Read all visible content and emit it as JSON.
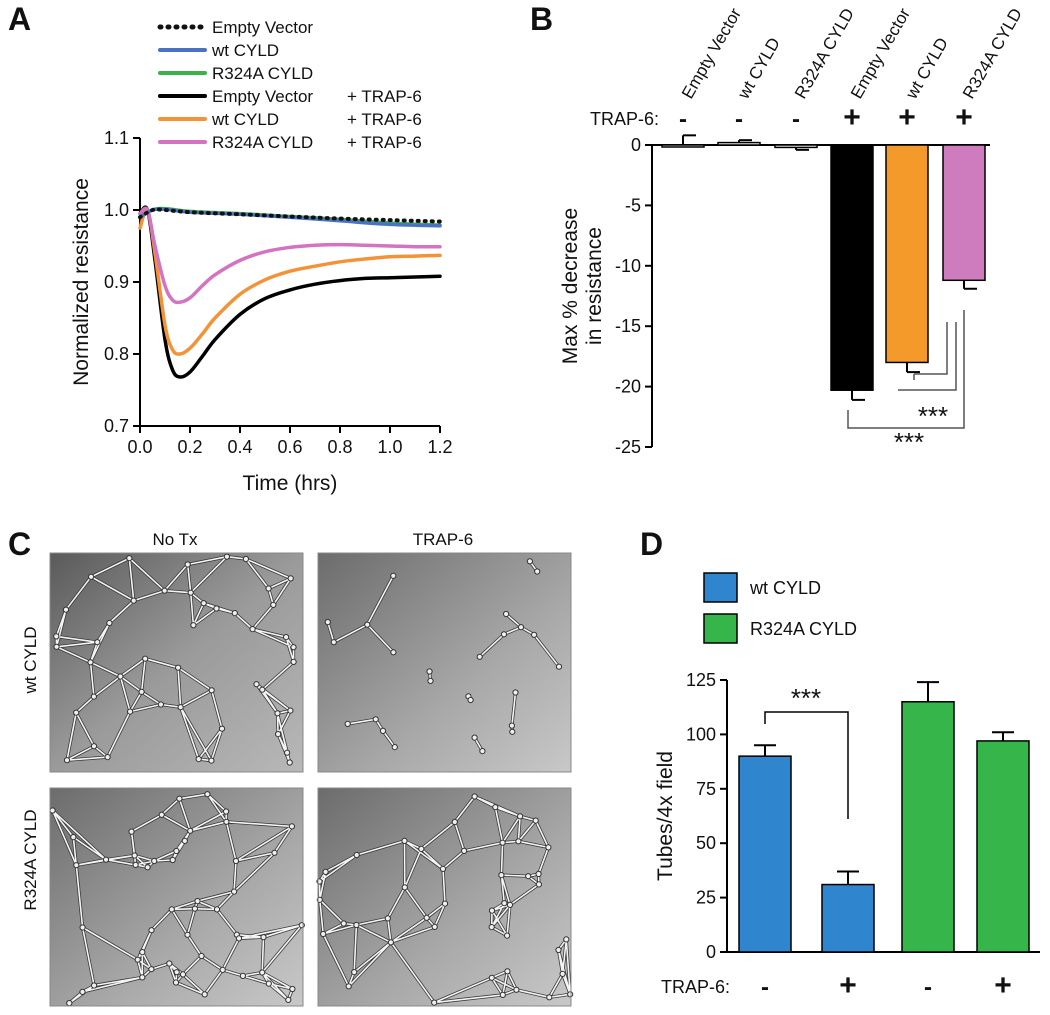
{
  "panels": {
    "A": {
      "label": "A"
    },
    "B": {
      "label": "B"
    },
    "C": {
      "label": "C",
      "col_headers": [
        "No Tx",
        "TRAP-6"
      ],
      "row_headers": [
        "wt CYLD",
        "R324A CYLD"
      ]
    },
    "D": {
      "label": "D"
    }
  },
  "colors": {
    "empty_vector": "#111111",
    "wt_cyld": "#4a72c4",
    "r324a_cyld": "#3db14a",
    "empty_vector_trap": "#000000",
    "wt_cyld_trap": "#f39237",
    "r324a_cyld_trap": "#d373c1",
    "bar_black": "#000000",
    "bar_orange": "#f39a2b",
    "bar_pink": "#ce7cbe",
    "bar_blue": "#2f86cf",
    "bar_green": "#36b54a"
  },
  "chart_data": [
    {
      "id": "A",
      "type": "line",
      "xlabel": "Time (hrs)",
      "ylabel": "Normalized resistance",
      "xlim": [
        0.0,
        1.2
      ],
      "ylim": [
        0.7,
        1.1
      ],
      "xticks": [
        "0.0",
        "0.2",
        "0.4",
        "0.6",
        "0.8",
        "1.0",
        "1.2"
      ],
      "yticks": [
        "0.7",
        "0.8",
        "0.9",
        "1.0",
        "1.1"
      ],
      "legend": {
        "position": "top",
        "entries": [
          {
            "text": "Empty Vector",
            "suffix": ""
          },
          {
            "text": "wt CYLD",
            "suffix": ""
          },
          {
            "text": "R324A CYLD",
            "suffix": ""
          },
          {
            "text": "Empty Vector",
            "suffix": "+ TRAP-6"
          },
          {
            "text": "wt CYLD",
            "suffix": "+ TRAP-6"
          },
          {
            "text": "R324A CYLD",
            "suffix": "+ TRAP-6"
          }
        ]
      },
      "series": [
        {
          "name": "Empty Vector",
          "style": "dotted",
          "color_key": "empty_vector",
          "x": [
            0,
            0.05,
            0.1,
            0.2,
            0.4,
            0.6,
            0.8,
            1.0,
            1.2
          ],
          "y": [
            0.99,
            1.0,
            1.0,
            0.997,
            0.994,
            0.991,
            0.988,
            0.986,
            0.984
          ]
        },
        {
          "name": "wt CYLD",
          "style": "solid",
          "color_key": "wt_cyld",
          "x": [
            0,
            0.05,
            0.1,
            0.2,
            0.4,
            0.6,
            0.8,
            1.0,
            1.2
          ],
          "y": [
            0.99,
            1.0,
            1.001,
            0.997,
            0.994,
            0.99,
            0.985,
            0.98,
            0.978
          ]
        },
        {
          "name": "R324A CYLD",
          "style": "solid",
          "color_key": "r324a_cyld",
          "x": [
            0,
            0.05,
            0.1,
            0.2,
            0.4,
            0.6,
            0.8,
            1.0,
            1.2
          ],
          "y": [
            0.99,
            1.0,
            1.002,
            0.998,
            0.995,
            0.991,
            0.987,
            0.982,
            0.979
          ]
        },
        {
          "name": "Empty Vector + TRAP-6",
          "style": "solid",
          "color_key": "empty_vector_trap",
          "x": [
            0,
            0.03,
            0.06,
            0.1,
            0.13,
            0.16,
            0.2,
            0.25,
            0.3,
            0.4,
            0.5,
            0.6,
            0.7,
            0.8,
            0.9,
            1.0,
            1.1,
            1.2
          ],
          "y": [
            0.995,
            1.0,
            0.93,
            0.82,
            0.778,
            0.768,
            0.775,
            0.797,
            0.82,
            0.855,
            0.877,
            0.889,
            0.897,
            0.902,
            0.905,
            0.906,
            0.907,
            0.908
          ]
        },
        {
          "name": "wt CYLD + TRAP-6",
          "style": "solid",
          "color_key": "wt_cyld_trap",
          "x": [
            0,
            0.03,
            0.06,
            0.1,
            0.13,
            0.16,
            0.2,
            0.25,
            0.3,
            0.4,
            0.5,
            0.6,
            0.7,
            0.8,
            0.9,
            1.0,
            1.1,
            1.2
          ],
          "y": [
            0.975,
            1.0,
            0.94,
            0.84,
            0.806,
            0.8,
            0.808,
            0.828,
            0.85,
            0.883,
            0.903,
            0.915,
            0.922,
            0.928,
            0.932,
            0.935,
            0.936,
            0.937
          ]
        },
        {
          "name": "R324A CYLD + TRAP-6",
          "style": "solid",
          "color_key": "r324a_cyld_trap",
          "x": [
            0,
            0.03,
            0.06,
            0.1,
            0.13,
            0.16,
            0.2,
            0.25,
            0.3,
            0.4,
            0.5,
            0.6,
            0.7,
            0.8,
            0.9,
            1.0,
            1.1,
            1.2
          ],
          "y": [
            0.995,
            1.0,
            0.95,
            0.895,
            0.875,
            0.872,
            0.878,
            0.895,
            0.91,
            0.93,
            0.942,
            0.948,
            0.951,
            0.952,
            0.951,
            0.95,
            0.949,
            0.949
          ]
        }
      ]
    },
    {
      "id": "B",
      "type": "bar",
      "ylabel": [
        "Max % decrease",
        "in resistance"
      ],
      "ylim": [
        -25,
        0
      ],
      "yticks": [
        "0",
        "-5",
        "-10",
        "-15",
        "-20",
        "-25"
      ],
      "categories": [
        "Empty Vector",
        "wt CYLD",
        "R324A CYLD",
        "Empty Vector",
        "wt CYLD",
        "R324A CYLD"
      ],
      "treatment_label": "TRAP-6:",
      "treatment": [
        "-",
        "-",
        "-",
        "+",
        "+",
        "+"
      ],
      "values": [
        0,
        0.2,
        -0.2,
        -20.3,
        -18.0,
        -11.2
      ],
      "errors": [
        0.8,
        0.2,
        0.2,
        0.8,
        0.8,
        0.7
      ],
      "bar_color_keys": [
        null,
        null,
        null,
        "bar_black",
        "bar_orange",
        "bar_pink"
      ],
      "significance": [
        {
          "from": 4,
          "to": 5,
          "label": "***"
        },
        {
          "from": 3,
          "to": 5,
          "label": "***"
        }
      ]
    },
    {
      "id": "D",
      "type": "bar",
      "ylabel": "Tubes/4x field",
      "ylim": [
        0,
        125
      ],
      "yticks": [
        "0",
        "25",
        "50",
        "75",
        "100",
        "125"
      ],
      "legend": {
        "position": "top",
        "entries": [
          {
            "text": "wt CYLD",
            "color_key": "bar_blue"
          },
          {
            "text": "R324A CYLD",
            "color_key": "bar_green"
          }
        ]
      },
      "treatment_label": "TRAP-6:",
      "treatment": [
        "-",
        "+",
        "-",
        "+"
      ],
      "values": [
        90,
        31,
        115,
        97
      ],
      "errors": [
        5,
        6,
        9,
        4
      ],
      "bar_color_keys": [
        "bar_blue",
        "bar_blue",
        "bar_green",
        "bar_green"
      ],
      "significance": [
        {
          "from": 0,
          "to": 1,
          "label": "***"
        }
      ]
    }
  ]
}
